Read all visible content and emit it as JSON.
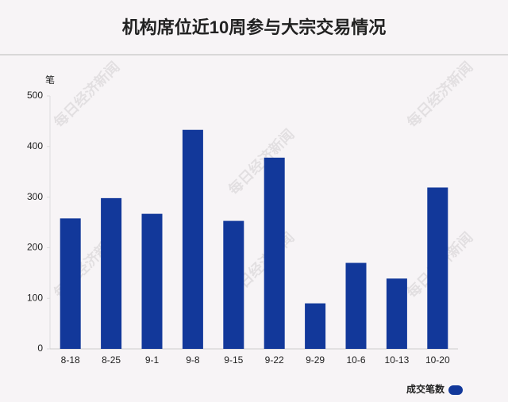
{
  "chart_data": {
    "type": "bar",
    "title": "机构席位近10周参与大宗交易情况",
    "y_label": "笔",
    "categories": [
      "8-18",
      "8-25",
      "9-1",
      "9-8",
      "9-15",
      "9-22",
      "9-29",
      "10-6",
      "10-13",
      "10-20"
    ],
    "series": [
      {
        "name": "成交笔数",
        "color": "#12389a",
        "values": [
          258,
          298,
          267,
          433,
          253,
          378,
          90,
          170,
          139,
          319
        ]
      }
    ],
    "ylim": [
      0,
      500
    ],
    "yticks": [
      0,
      100,
      200,
      300,
      400,
      500
    ],
    "grid": false,
    "legend": "bottom-right",
    "watermark": "每日经济新闻"
  }
}
